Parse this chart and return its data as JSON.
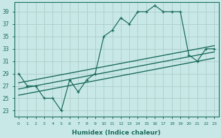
{
  "xlabel": "Humidex (Indice chaleur)",
  "background_color": "#c8e8e8",
  "grid_color": "#b0d0cc",
  "line_color": "#1a6b5a",
  "xlim": [
    -0.5,
    23.5
  ],
  "ylim": [
    22.0,
    40.5
  ],
  "yticks": [
    23,
    25,
    27,
    29,
    31,
    33,
    35,
    37,
    39
  ],
  "xticks": [
    0,
    1,
    2,
    3,
    4,
    5,
    6,
    7,
    8,
    9,
    10,
    11,
    12,
    13,
    14,
    15,
    16,
    17,
    18,
    19,
    20,
    21,
    22,
    23
  ],
  "main_y": [
    29,
    27,
    27,
    25,
    25,
    23,
    28,
    26,
    28,
    29,
    35,
    36,
    38,
    37,
    39,
    39,
    40,
    39,
    39,
    39,
    32,
    31,
    33,
    33
  ],
  "reg_x0": 0,
  "reg_x1": 23,
  "reg_line_y0": 26.5,
  "reg_line_y1": 32.5,
  "upper_band_y0": 27.5,
  "upper_band_y1": 33.5,
  "lower_band_y0": 25.5,
  "lower_band_y1": 31.5
}
